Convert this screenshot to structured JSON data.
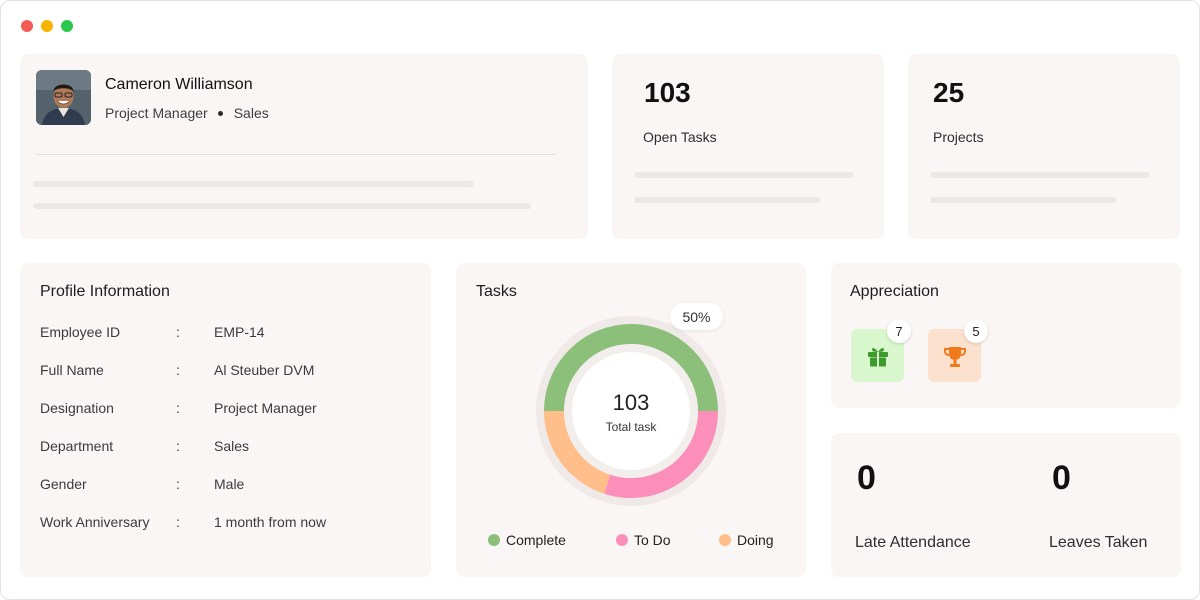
{
  "window": {
    "controls": [
      {
        "name": "close",
        "color": "#f25c54"
      },
      {
        "name": "minimize",
        "color": "#f4b400"
      },
      {
        "name": "maximize",
        "color": "#2cc84d"
      }
    ]
  },
  "profile_card": {
    "avatar_icon": "user-photo",
    "name": "Cameron Williamson",
    "role": "Project Manager",
    "department": "Sales"
  },
  "stats": {
    "open_tasks": {
      "value": "103",
      "label": "Open Tasks"
    },
    "projects": {
      "value": "25",
      "label": "Projects"
    }
  },
  "profile_info": {
    "title": "Profile Information",
    "rows": [
      {
        "label": "Employee ID",
        "sep": ":",
        "value": "EMP-14"
      },
      {
        "label": "Full Name",
        "sep": ":",
        "value": "Al Steuber DVM"
      },
      {
        "label": "Designation",
        "sep": ":",
        "value": "Project Manager"
      },
      {
        "label": "Department",
        "sep": ":",
        "value": "Sales"
      },
      {
        "label": "Gender",
        "sep": ":",
        "value": "Male"
      },
      {
        "label": "Work Anniversary",
        "sep": ":",
        "value": "1 month from now"
      }
    ]
  },
  "tasks": {
    "title": "Tasks",
    "percent_label": "50%",
    "total": "103",
    "total_label": "Total task",
    "legend": [
      {
        "label": "Complete",
        "color": "#8cc07a"
      },
      {
        "label": "To Do",
        "color": "#fb8fba"
      },
      {
        "label": "Doing",
        "color": "#ffbe8a"
      }
    ]
  },
  "chart_data": {
    "type": "pie",
    "donut": true,
    "categories": [
      "Complete",
      "To Do",
      "Doing"
    ],
    "values": [
      50,
      30,
      20
    ],
    "colors": [
      "#8cc07a",
      "#fb8fba",
      "#ffbe8a"
    ],
    "center_value": "103",
    "center_label": "Total task",
    "highlight_label": "50%"
  },
  "appreciation": {
    "title": "Appreciation",
    "badges": [
      {
        "icon": "gift-icon",
        "count": "7",
        "bg": "#d8f7cc",
        "color": "#3f9a2c"
      },
      {
        "icon": "trophy-icon",
        "count": "5",
        "bg": "#fde1cf",
        "color": "#f07a1c"
      }
    ]
  },
  "attendance": {
    "late": {
      "value": "0",
      "label": "Late Attendance"
    },
    "leaves": {
      "value": "0",
      "label": "Leaves Taken"
    }
  }
}
